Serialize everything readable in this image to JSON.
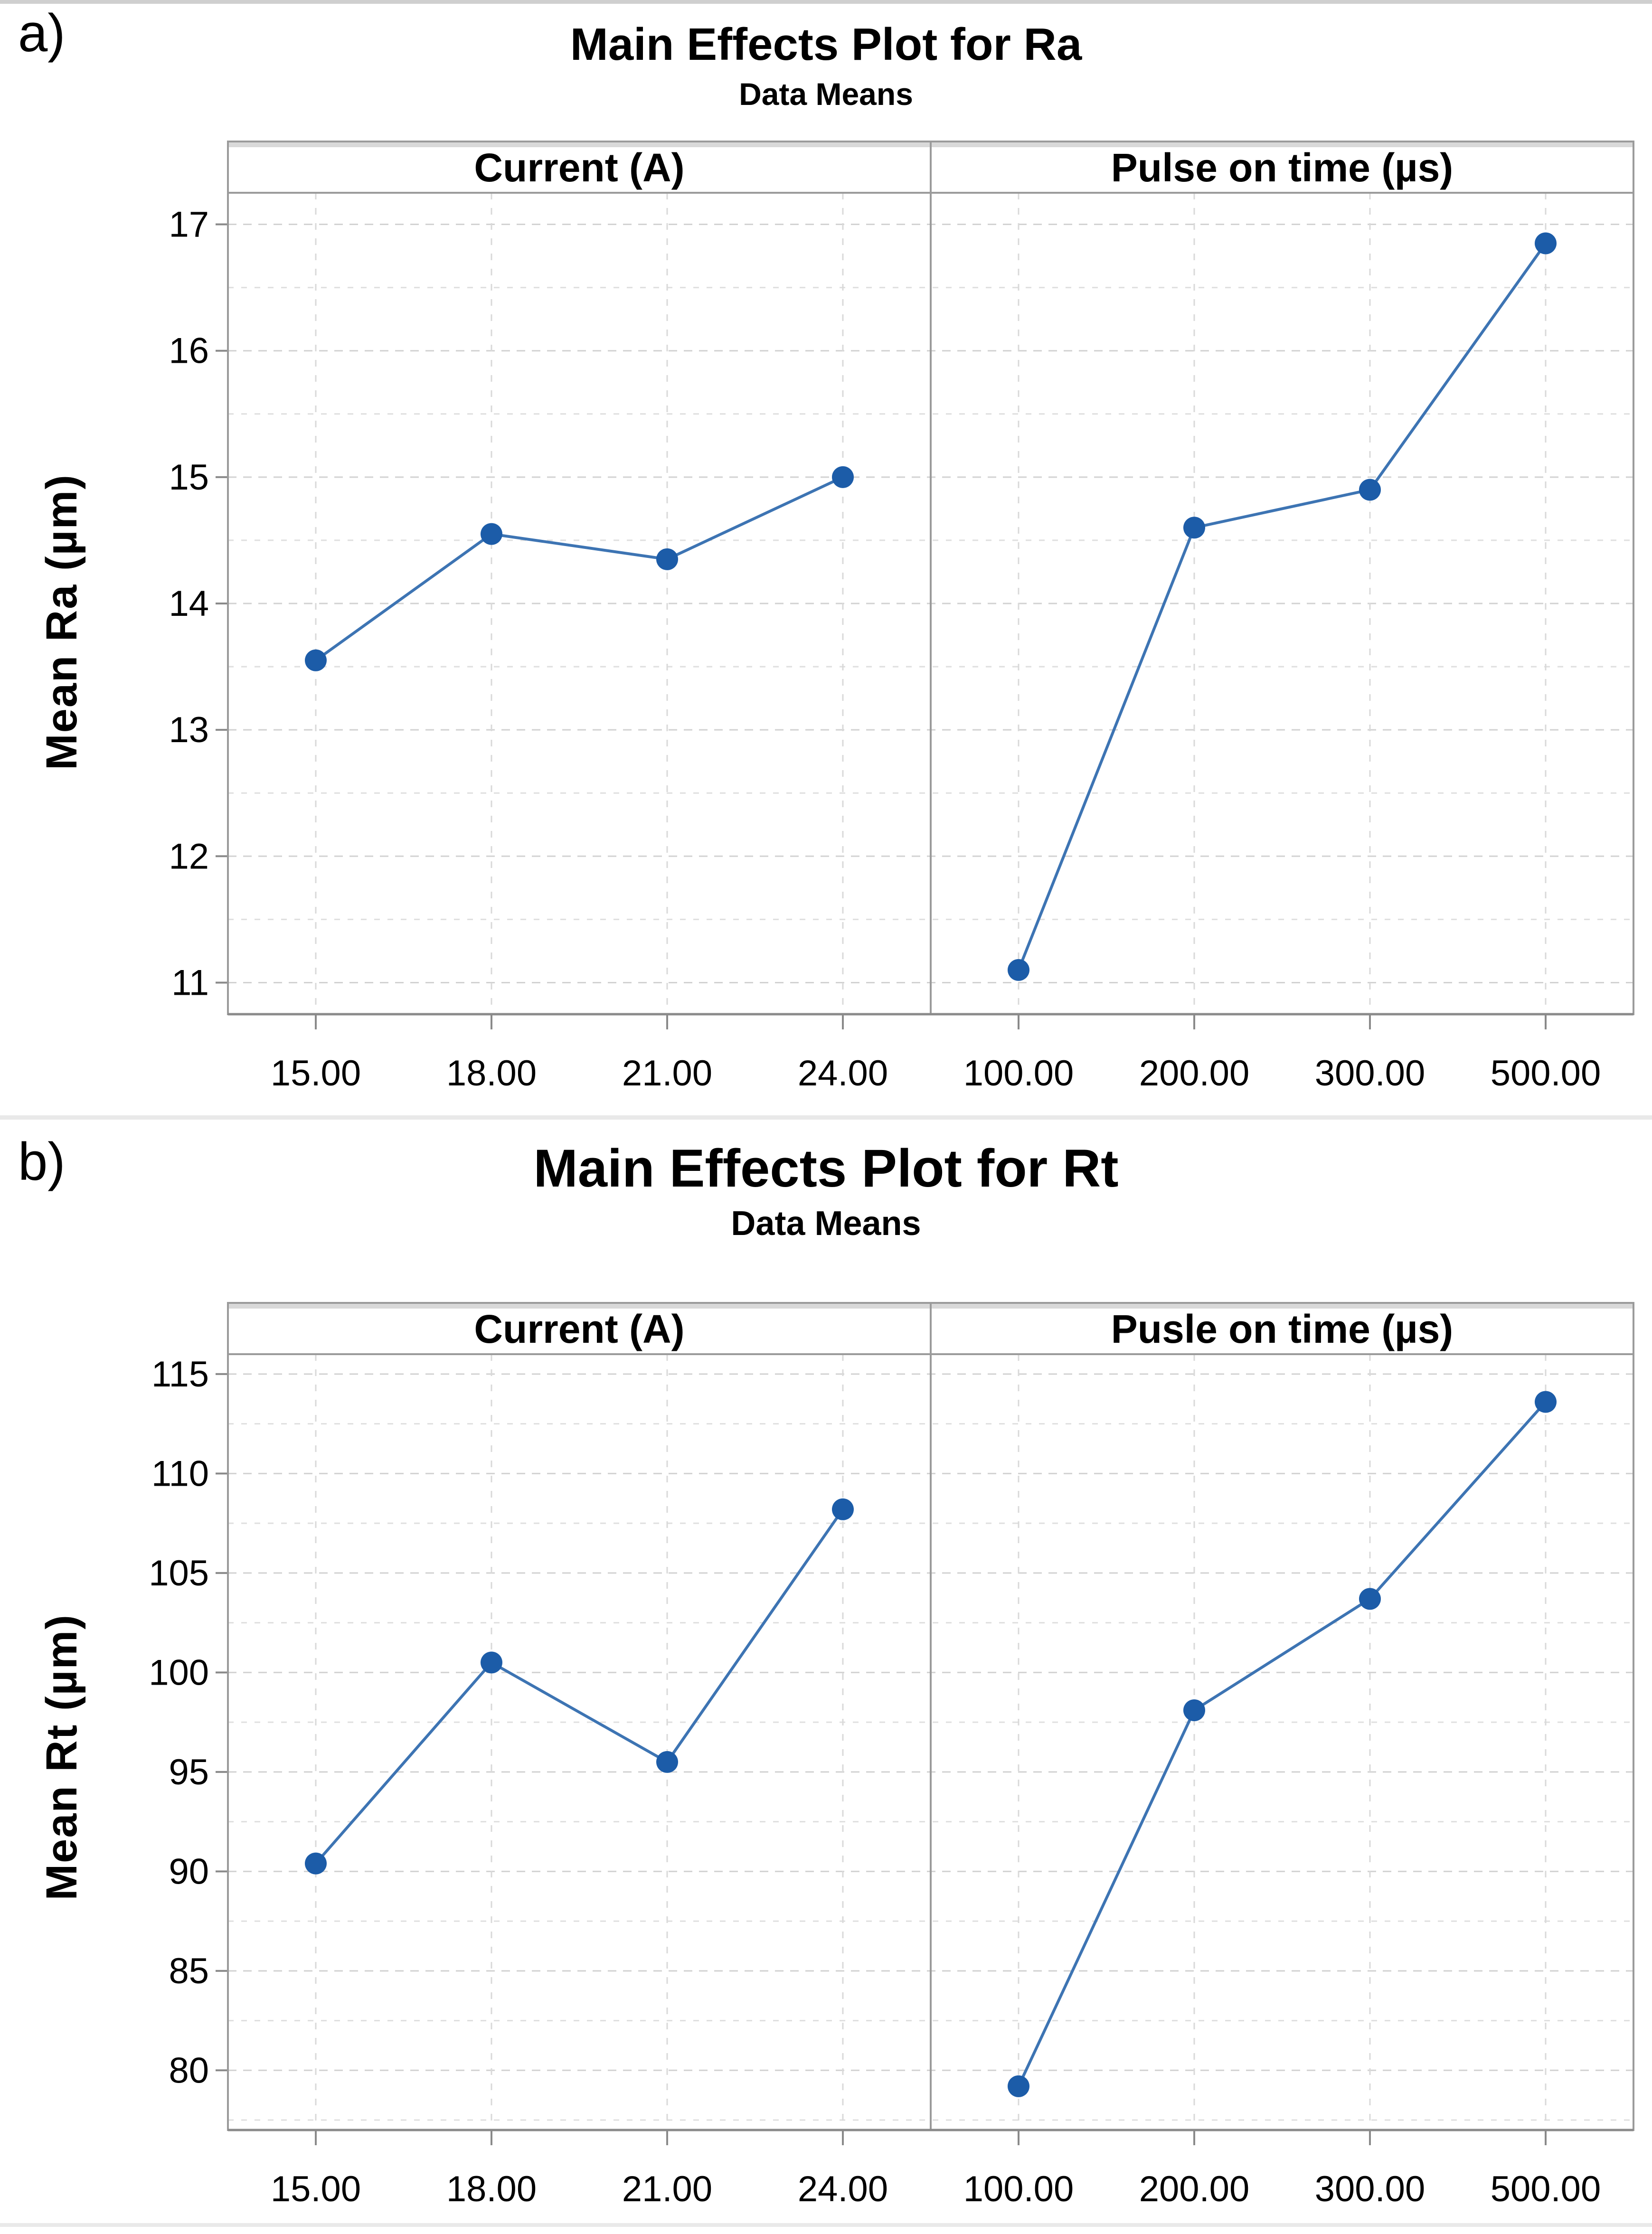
{
  "style": {
    "page_bg": "#FFFFFF",
    "series_line": "#3D74B3",
    "series_marker": "#1C5CA8",
    "grid_major": "#D2D2D2",
    "grid_minor": "#DFDFDF",
    "grid_vertical": "#D9D9D9",
    "panel_border": "#9B9B9B",
    "axis_line": "#8A8A8A",
    "top_band": "#D9D9D9",
    "tick_mark": "#8A8A8A",
    "text": "#000000",
    "separator": "#E9E9E9"
  },
  "chart_data": [
    {
      "type": "line",
      "corner_label": "a)",
      "title": "Main Effects Plot for Ra",
      "subtitle": "Data Means",
      "ylabel": "Mean Ra (µm)",
      "ylim": [
        10.75,
        17.25
      ],
      "y_ticks": [
        11,
        12,
        13,
        14,
        15,
        16,
        17
      ],
      "y_tick_labels": [
        "11",
        "12",
        "13",
        "14",
        "15",
        "16",
        "17"
      ],
      "y_minor_step": 0.5,
      "grid": true,
      "legend": "none",
      "panels": [
        {
          "header": "Current (A)",
          "categories": [
            "15.00",
            "18.00",
            "21.00",
            "24.00"
          ],
          "values": [
            13.55,
            14.55,
            14.35,
            15.0
          ]
        },
        {
          "header": "Pulse on time (µs)",
          "categories": [
            "100.00",
            "200.00",
            "300.00",
            "500.00"
          ],
          "values": [
            11.1,
            14.6,
            14.9,
            16.85
          ]
        }
      ]
    },
    {
      "type": "line",
      "corner_label": "b)",
      "title": "Main Effects Plot for Rt",
      "subtitle": "Data Means",
      "ylabel": "Mean Rt (µm)",
      "ylim": [
        77,
        116
      ],
      "y_ticks": [
        80,
        85,
        90,
        95,
        100,
        105,
        110,
        115
      ],
      "y_tick_labels": [
        "80",
        "85",
        "90",
        "95",
        "100",
        "105",
        "110",
        "115"
      ],
      "y_minor_step": 2.5,
      "grid": true,
      "legend": "none",
      "panels": [
        {
          "header": "Current (A)",
          "categories": [
            "15.00",
            "18.00",
            "21.00",
            "24.00"
          ],
          "values": [
            90.4,
            100.5,
            95.5,
            108.2
          ]
        },
        {
          "header": "Pusle on time (µs)",
          "categories": [
            "100.00",
            "200.00",
            "300.00",
            "500.00"
          ],
          "values": [
            79.2,
            98.1,
            103.7,
            113.6
          ]
        }
      ]
    }
  ]
}
